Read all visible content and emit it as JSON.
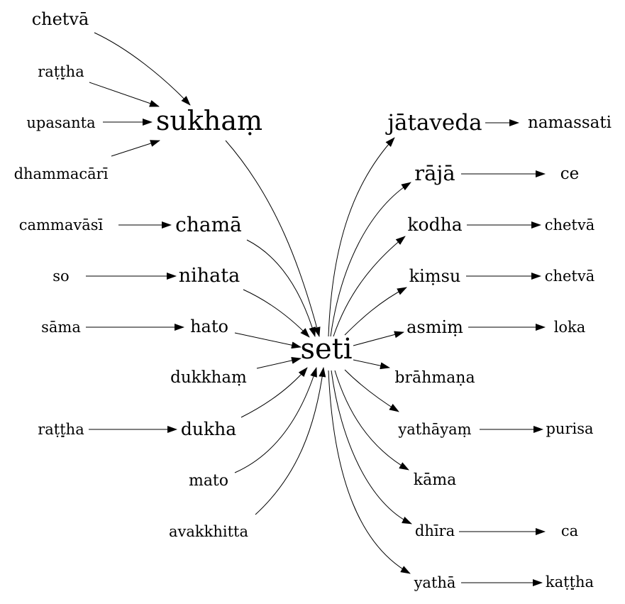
{
  "nodes": {
    "chetva_top": "chetvā",
    "rattha_top": "raṭṭ̣ha",
    "upasanta": "upasanta",
    "dhammacari": "dhammacārī",
    "sukham": "sukhaṃ",
    "cammavasi": "cammavāsī",
    "chama": "chamā",
    "so": "so",
    "nihata": "nihata",
    "sama": "sāma",
    "hato": "hato",
    "dukkham": "dukkhaṃ",
    "rattha_bottom": "raṭṭ̣ha",
    "dukha": "dukha",
    "mato": "mato",
    "avakkhitta": "avakkhitta",
    "seti": "seti",
    "jataveda": "jātaveda",
    "namassati": "namassati",
    "raja": "rājā",
    "ce": "ce",
    "kodha": "kodha",
    "chetva_kodha": "chetvā",
    "kimsu": "kiṃsu",
    "chetva_kimsu": "chetvā",
    "asmim": "asmiṃ",
    "loka": "loka",
    "brahmana": "brāhmaṇa",
    "yathayam": "yathāyaṃ",
    "purisa": "purisa",
    "kama": "kāma",
    "dhira": "dhīra",
    "ca": "ca",
    "yatha": "yathā",
    "kattha": "kaṭṭ̣ha"
  }
}
